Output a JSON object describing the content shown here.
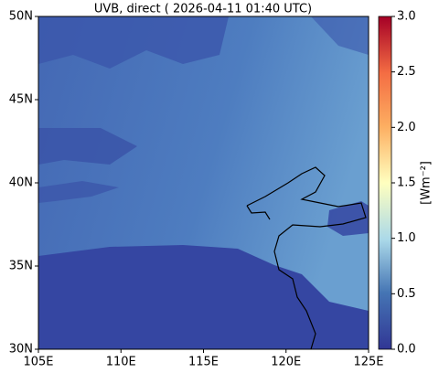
{
  "chart_data": {
    "type": "map",
    "title": "UVB, direct ( 2026-04-11 01:40 UTC)",
    "xlim": [
      105,
      125
    ],
    "xticks": [
      {
        "value": 105,
        "label": "105E"
      },
      {
        "value": 110,
        "label": "110E"
      },
      {
        "value": 115,
        "label": "115E"
      },
      {
        "value": 120,
        "label": "120E"
      },
      {
        "value": 125,
        "label": "125E"
      }
    ],
    "ylim": [
      30,
      50
    ],
    "yticks": [
      {
        "value": 30,
        "label": "30N"
      },
      {
        "value": 35,
        "label": "35N"
      },
      {
        "value": 40,
        "label": "40N"
      },
      {
        "value": 45,
        "label": "45N"
      },
      {
        "value": 50,
        "label": "50N"
      }
    ],
    "colorbar": {
      "label": "[Wm⁻²]",
      "lim": [
        0,
        3
      ],
      "ticks": [
        {
          "value": 0,
          "label": "0.0"
        },
        {
          "value": 0.5,
          "label": "0.5"
        },
        {
          "value": 1,
          "label": "1.0"
        },
        {
          "value": 1.5,
          "label": "1.5"
        },
        {
          "value": 2,
          "label": "2.0"
        },
        {
          "value": 2.5,
          "label": "2.5"
        },
        {
          "value": 3,
          "label": "3.0"
        }
      ]
    }
  }
}
